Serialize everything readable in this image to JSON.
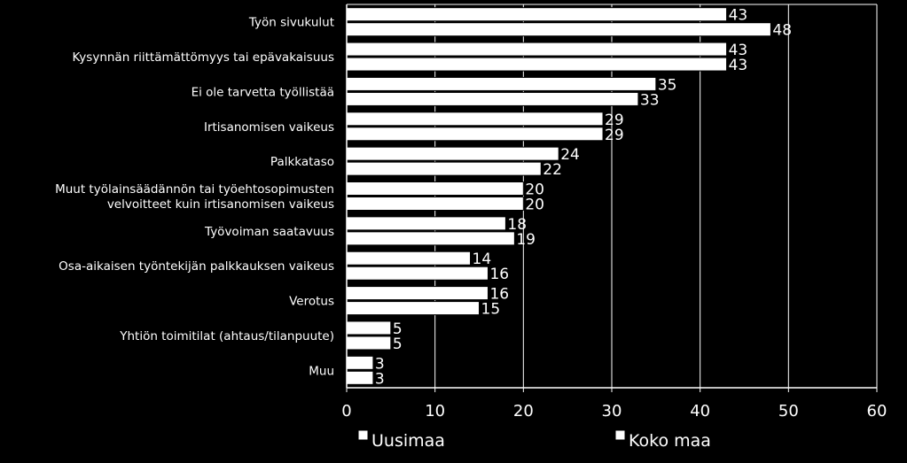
{
  "chart_data": {
    "type": "bar",
    "orientation": "horizontal",
    "categories": [
      [
        "Työn sivukulut"
      ],
      [
        "Kysynnän riittämättömyys tai epävakaisuus"
      ],
      [
        "Ei ole tarvetta työllistää"
      ],
      [
        "Irtisanomisen vaikeus"
      ],
      [
        "Palkkataso"
      ],
      [
        "Muut työlainsäädännön tai työehtosopimusten",
        "velvoitteet kuin irtisanomisen vaikeus"
      ],
      [
        "Työvoiman saatavuus"
      ],
      [
        "Osa-aikaisen työntekijän palkkauksen vaikeus"
      ],
      [
        "Verotus"
      ],
      [
        "Yhtiön toimitilat (ahtaus/tilanpuute)"
      ],
      [
        "Muu"
      ]
    ],
    "series": [
      {
        "name": "Uusimaa",
        "values": [
          43,
          43,
          35,
          29,
          24,
          20,
          18,
          14,
          16,
          5,
          3
        ]
      },
      {
        "name": "Koko maa",
        "values": [
          48,
          43,
          33,
          29,
          22,
          20,
          19,
          16,
          15,
          5,
          3
        ]
      }
    ],
    "xlim": [
      0,
      60
    ],
    "xticks": [
      0,
      10,
      20,
      30,
      40,
      50,
      60
    ],
    "grid": true,
    "legend": "bottom",
    "colors": {
      "background": "#000000",
      "bar_fill": "#ffffff",
      "bar_stroke": "#000000",
      "grid": "#ffffff",
      "text": "#ffffff"
    }
  }
}
